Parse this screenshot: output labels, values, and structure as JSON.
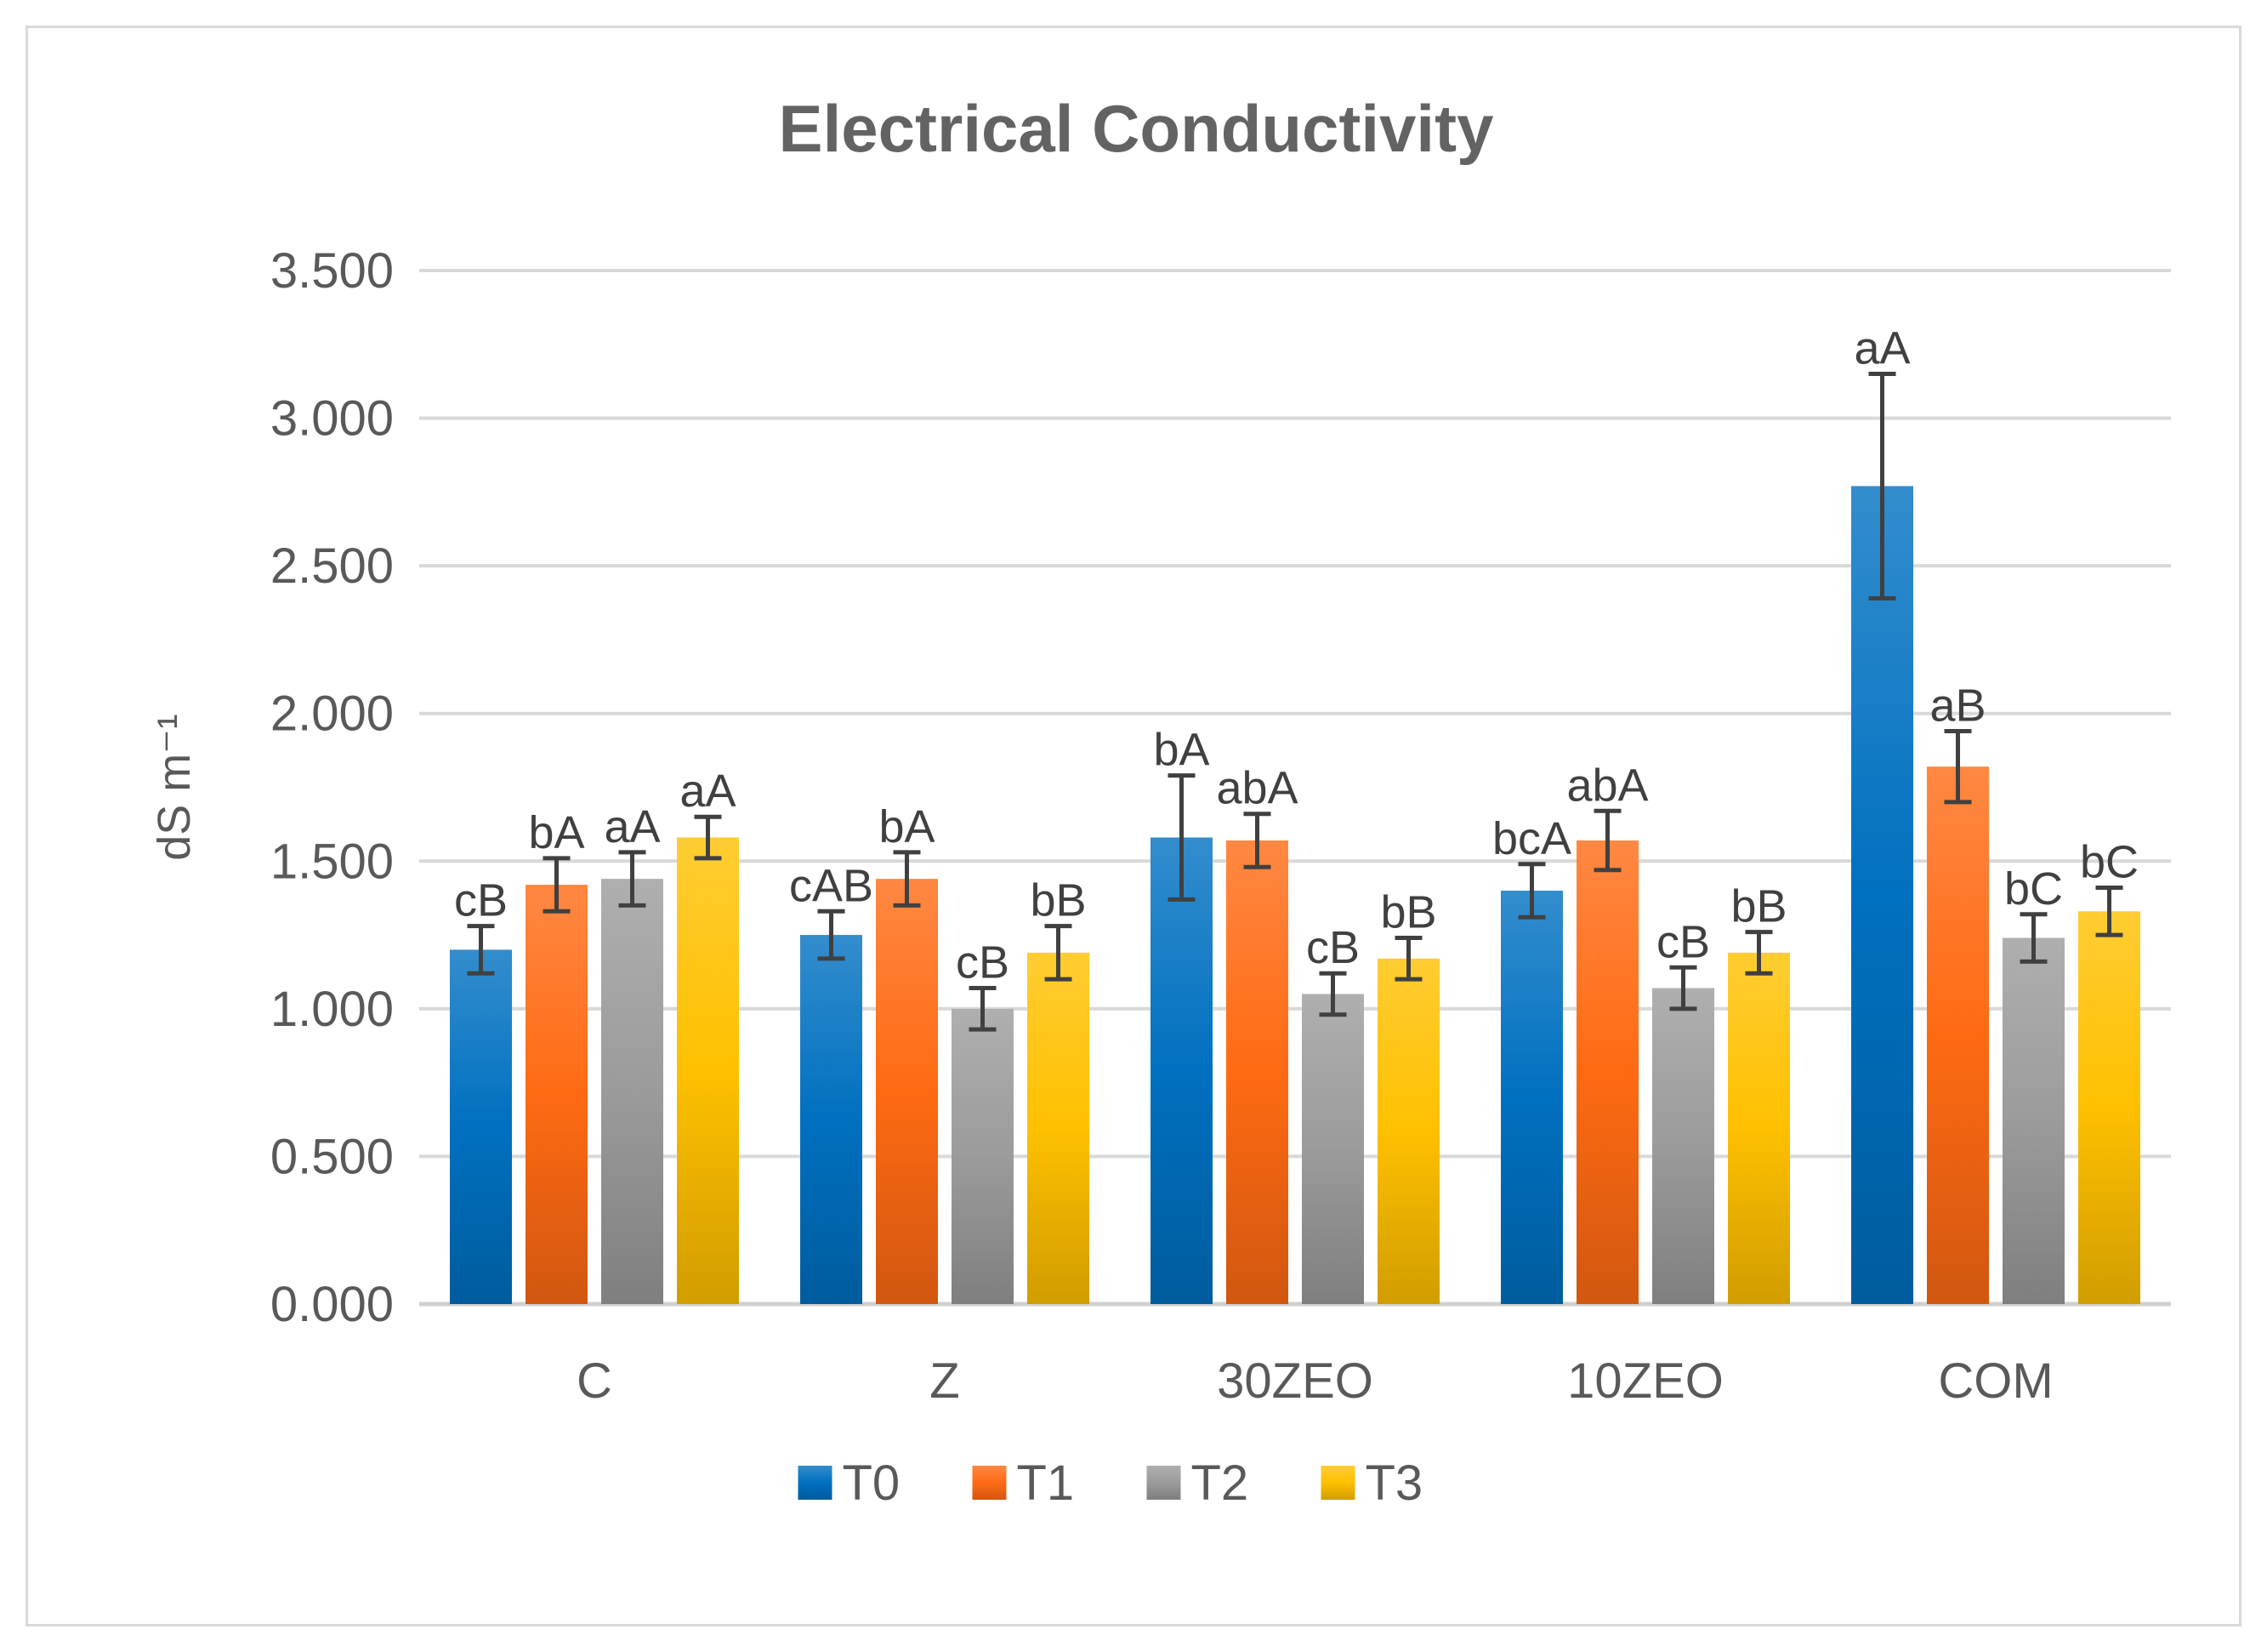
{
  "chart_data": {
    "type": "bar",
    "title": "Electrical Conductivity",
    "xlabel": "",
    "ylabel": "dS m⁻¹",
    "ylim": [
      0,
      3.5
    ],
    "yticks": [
      "0.000",
      "0.500",
      "1.000",
      "1.500",
      "2.000",
      "2.500",
      "3.000",
      "3.500"
    ],
    "ytick_values": [
      0,
      0.5,
      1.0,
      1.5,
      2.0,
      2.5,
      3.0,
      3.5
    ],
    "grid": true,
    "legend_position": "bottom",
    "categories": [
      "C",
      "Z",
      "30ZEO",
      "10ZEO",
      "COM"
    ],
    "series": [
      {
        "name": "T0",
        "color": "#0070c0",
        "values": [
          1.2,
          1.25,
          1.58,
          1.4,
          2.77
        ],
        "errors": [
          0.08,
          0.08,
          0.21,
          0.09,
          0.38
        ],
        "labels": [
          "cB",
          "cAB",
          "bA",
          "bcA",
          "aA"
        ]
      },
      {
        "name": "T1",
        "color": "#ff6a13",
        "values": [
          1.42,
          1.44,
          1.57,
          1.57,
          1.82
        ],
        "errors": [
          0.09,
          0.09,
          0.09,
          0.1,
          0.12
        ],
        "labels": [
          "bA",
          "bA",
          "abA",
          "abA",
          "aB"
        ]
      },
      {
        "name": "T2",
        "color": "#9b9b9b",
        "values": [
          1.44,
          1.0,
          1.05,
          1.07,
          1.24
        ],
        "errors": [
          0.09,
          0.07,
          0.07,
          0.07,
          0.08
        ],
        "labels": [
          "aA",
          "cB",
          "cB",
          "cB",
          "bC"
        ]
      },
      {
        "name": "T3",
        "color": "#ffc000",
        "values": [
          1.58,
          1.19,
          1.17,
          1.19,
          1.33
        ],
        "errors": [
          0.07,
          0.09,
          0.07,
          0.07,
          0.08
        ],
        "labels": [
          "aA",
          "bB",
          "bB",
          "bB",
          "bC"
        ]
      }
    ]
  }
}
